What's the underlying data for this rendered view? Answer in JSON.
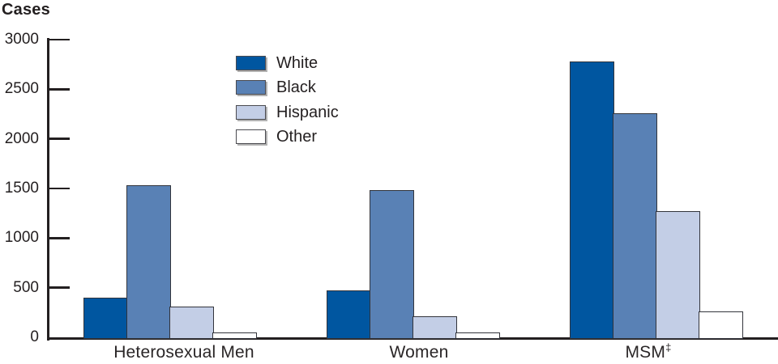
{
  "chart_data": {
    "type": "bar",
    "title": "Cases",
    "ylabel": "Cases",
    "xlabel": "",
    "ylim": [
      0,
      3000
    ],
    "yticks": [
      0,
      500,
      1000,
      1500,
      2000,
      2500,
      3000
    ],
    "grid": false,
    "legend_position": "upper-left-inside",
    "categories": [
      "Heterosexual Men",
      "Women",
      "MSM‡"
    ],
    "series": [
      {
        "name": "White",
        "color": "#0056a0",
        "values": [
          400,
          475,
          2780
        ]
      },
      {
        "name": "Black",
        "color": "#5981b5",
        "values": [
          1530,
          1480,
          2260
        ]
      },
      {
        "name": "Hispanic",
        "color": "#c3cee6",
        "values": [
          310,
          215,
          1270
        ]
      },
      {
        "name": "Other",
        "color": "#ffffff",
        "values": [
          50,
          45,
          260
        ]
      }
    ]
  },
  "colors": {
    "axis": "#231f20",
    "text": "#231f20",
    "bar_border": "#33353c",
    "legend_border": "#4b4b50",
    "legend_shadow": "#b2b2b2",
    "background": "#ffffff"
  }
}
